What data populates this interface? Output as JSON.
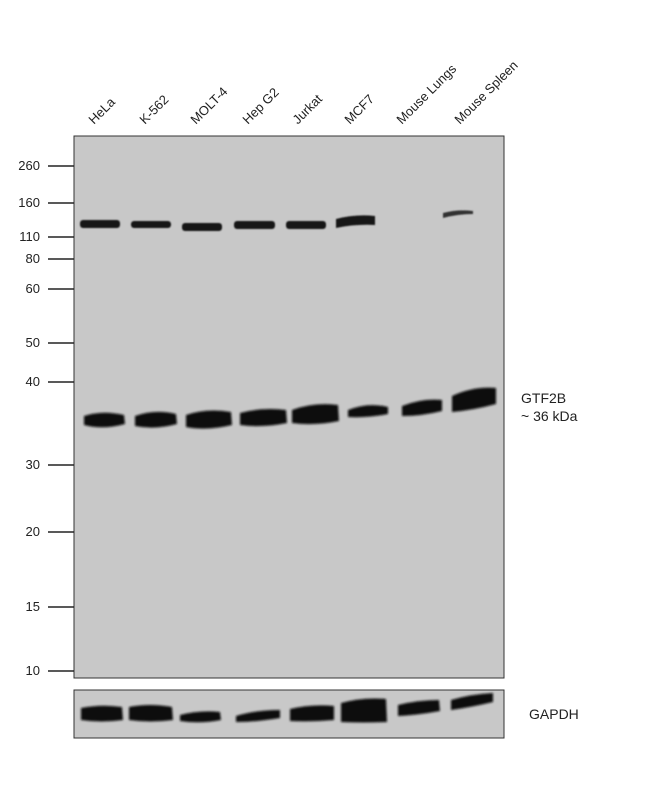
{
  "lanes": [
    "HeLa",
    "K-562",
    "MOLT-4",
    "Hep G2",
    "Jurkat",
    "MCF7",
    "Mouse Lungs",
    "Mouse Spleen"
  ],
  "markers": [
    "260",
    "160",
    "110",
    "80",
    "60",
    "50",
    "40",
    "30",
    "20",
    "15",
    "10"
  ],
  "target": {
    "name": "GTF2B",
    "size": "~ 36 kDa"
  },
  "loading_control": "GAPDH",
  "colors": {
    "membrane": "#c8c8c8",
    "band": "#111111"
  }
}
